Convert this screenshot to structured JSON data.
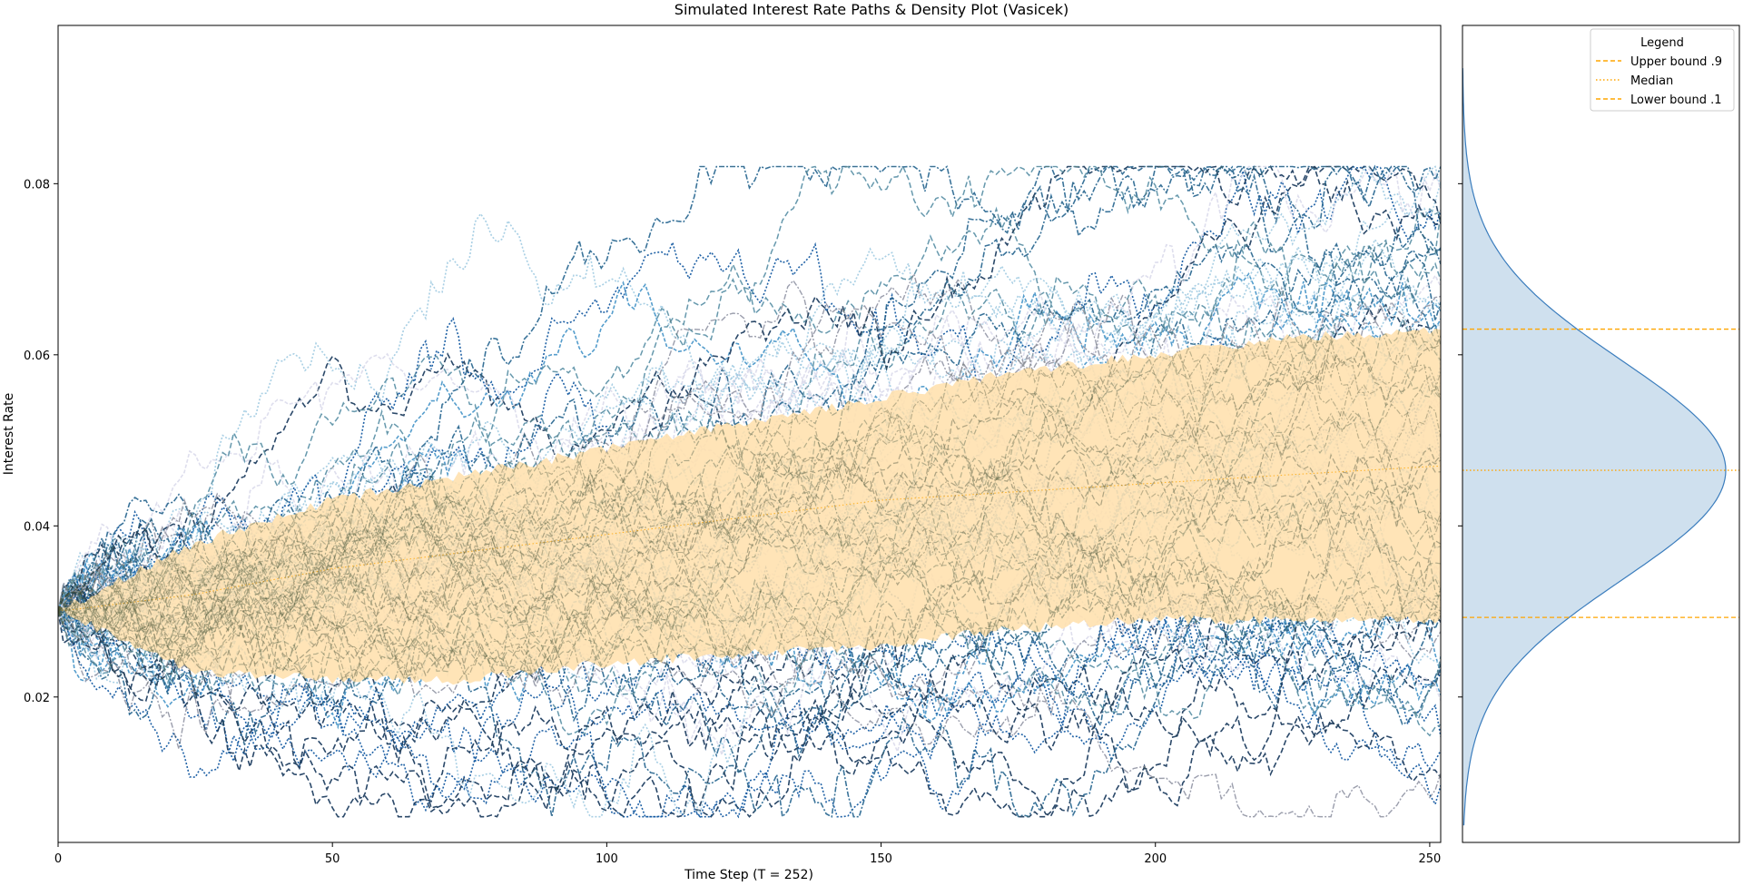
{
  "chart_data": {
    "type": "line",
    "title": "Simulated Interest Rate Paths & Density Plot (Vasicek)",
    "xlabel": "Time Step (T = 252)",
    "ylabel": "Interest Rate",
    "xlim": [
      0,
      252
    ],
    "ylim": [
      0.003,
      0.0985
    ],
    "x_ticks": [
      "0",
      "50",
      "100",
      "150",
      "200",
      "250"
    ],
    "y_ticks": [
      "0.02",
      "0.04",
      "0.06",
      "0.08"
    ],
    "grid": false,
    "simulation": {
      "model": "Vasicek",
      "r0": 0.03,
      "steps": 252,
      "n_paths": 90
    },
    "band": {
      "x": [
        0,
        25,
        50,
        75,
        100,
        125,
        150,
        175,
        200,
        225,
        252
      ],
      "lower": [
        0.03,
        0.023,
        0.022,
        0.022,
        0.024,
        0.025,
        0.026,
        0.028,
        0.029,
        0.029,
        0.029
      ],
      "median": [
        0.03,
        0.032,
        0.035,
        0.037,
        0.039,
        0.041,
        0.043,
        0.044,
        0.045,
        0.046,
        0.047
      ],
      "upper": [
        0.03,
        0.038,
        0.043,
        0.046,
        0.049,
        0.052,
        0.055,
        0.058,
        0.06,
        0.062,
        0.063
      ]
    },
    "density": {
      "mean": 0.0465,
      "sd": 0.0128,
      "range": [
        0.005,
        0.094
      ],
      "upper_bound": 0.063,
      "median": 0.0465,
      "lower_bound": 0.0293
    },
    "legend": {
      "title": "Legend",
      "position": "top-right",
      "entries": [
        {
          "label": "Upper bound .9",
          "style": "dashed"
        },
        {
          "label": "Median",
          "style": "dotted"
        },
        {
          "label": "Lower bound .1",
          "style": "dashed"
        }
      ]
    },
    "colors": {
      "band_fill": "#ffe0ad",
      "bound_line": "#ffa500",
      "density_fill": "#cfe0ee",
      "density_line": "#3b7dbd",
      "path_palette": [
        "#08306b",
        "#08519c",
        "#2171b5",
        "#4292c6",
        "#6baed6",
        "#9ecae1",
        "#bcbddc",
        "#dadaeb",
        "#4d5a3a"
      ]
    }
  }
}
